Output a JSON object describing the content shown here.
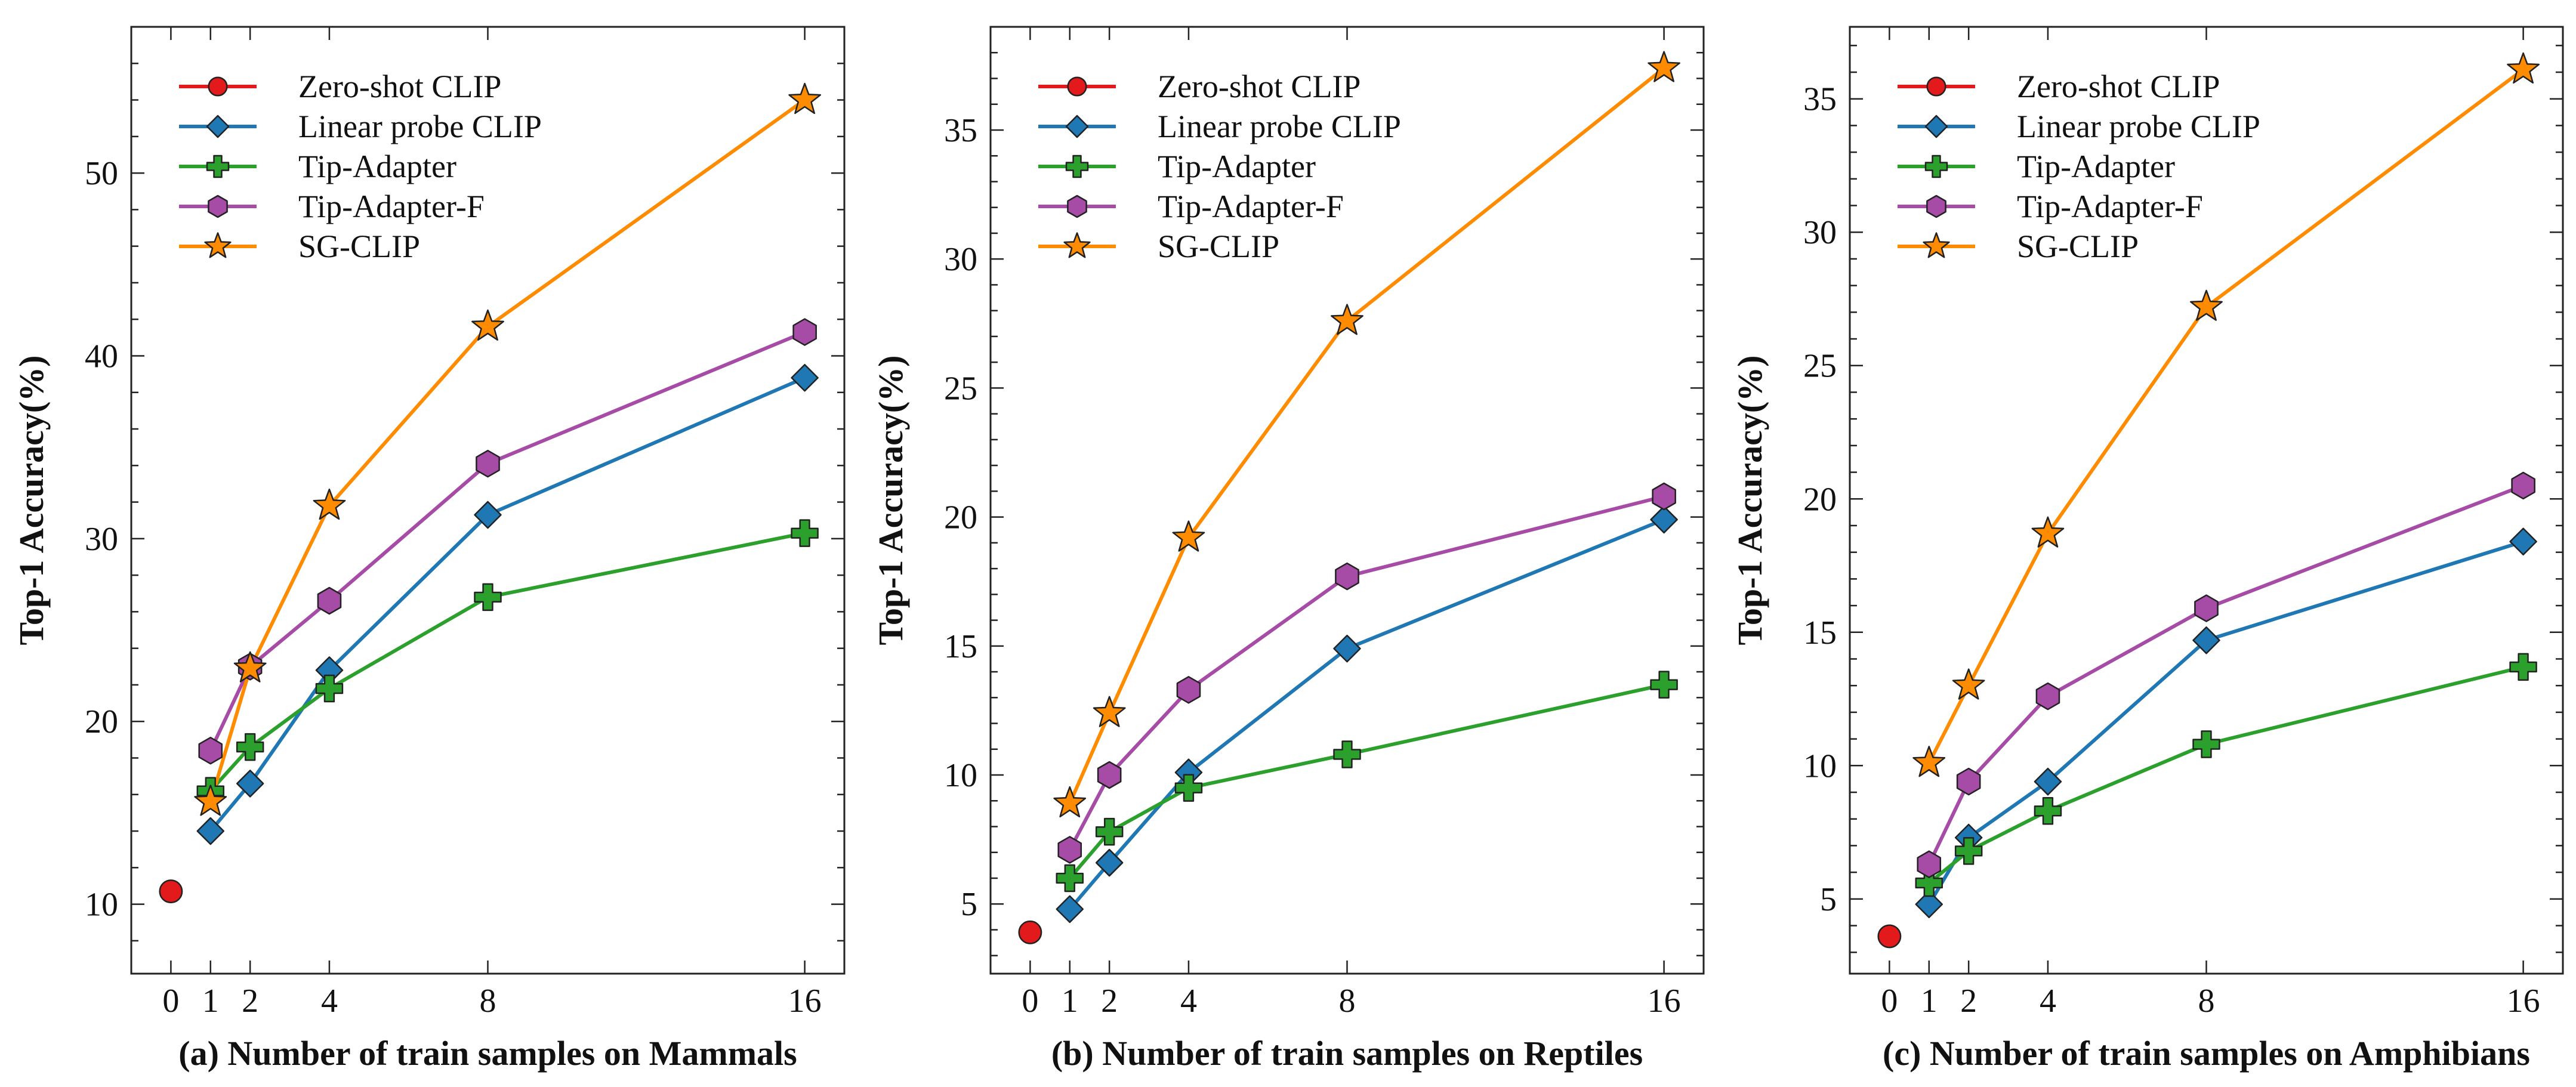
{
  "chart_data": [
    {
      "type": "line",
      "panel": "a",
      "xlabel": "(a) Number of train samples on Mammals",
      "ylabel": "Top-1 Accuracy(%)",
      "xticks": [
        "0",
        "1",
        "2",
        "4",
        "8",
        "16"
      ],
      "xlim": [
        -1,
        17
      ],
      "yticks": [
        10,
        20,
        30,
        40,
        50
      ],
      "ylim": [
        6.2,
        58
      ],
      "legend": "top-left",
      "series": [
        {
          "name": "Zero-shot CLIP",
          "color": "#e31a1c",
          "marker": "circle",
          "x": [
            0
          ],
          "y": [
            10.7
          ]
        },
        {
          "name": "Linear probe CLIP",
          "color": "#1f78b4",
          "marker": "diamond",
          "x": [
            1,
            2,
            4,
            8,
            16
          ],
          "y": [
            14.0,
            16.6,
            22.8,
            31.3,
            38.8
          ]
        },
        {
          "name": "Tip-Adapter",
          "color": "#2ca02c",
          "marker": "plus",
          "x": [
            1,
            2,
            4,
            8,
            16
          ],
          "y": [
            16.2,
            18.6,
            21.8,
            26.8,
            30.3
          ]
        },
        {
          "name": "Tip-Adapter-F",
          "color": "#a64ca6",
          "marker": "hexagon",
          "x": [
            1,
            2,
            4,
            8,
            16
          ],
          "y": [
            18.4,
            23.0,
            26.6,
            34.1,
            41.3
          ]
        },
        {
          "name": "SG-CLIP",
          "color": "#ff8c00",
          "marker": "star",
          "x": [
            1,
            2,
            4,
            8,
            16
          ],
          "y": [
            15.6,
            22.9,
            31.8,
            41.6,
            54.0
          ]
        }
      ]
    },
    {
      "type": "line",
      "panel": "b",
      "xlabel": "(b) Number of train samples on Reptiles",
      "ylabel": "Top-1 Accuracy(%)",
      "xticks": [
        "0",
        "1",
        "2",
        "4",
        "8",
        "16"
      ],
      "xlim": [
        -1,
        17
      ],
      "yticks": [
        5,
        10,
        15,
        20,
        25,
        30,
        35
      ],
      "ylim": [
        2.3,
        39.0
      ],
      "legend": "top-left",
      "series": [
        {
          "name": "Zero-shot CLIP",
          "color": "#e31a1c",
          "marker": "circle",
          "x": [
            0
          ],
          "y": [
            3.9
          ]
        },
        {
          "name": "Linear probe CLIP",
          "color": "#1f78b4",
          "marker": "diamond",
          "x": [
            1,
            2,
            4,
            8,
            16
          ],
          "y": [
            4.8,
            6.6,
            10.1,
            14.9,
            19.9
          ]
        },
        {
          "name": "Tip-Adapter",
          "color": "#2ca02c",
          "marker": "plus",
          "x": [
            1,
            2,
            4,
            8,
            16
          ],
          "y": [
            6.0,
            7.8,
            9.5,
            10.8,
            13.5
          ]
        },
        {
          "name": "Tip-Adapter-F",
          "color": "#a64ca6",
          "marker": "hexagon",
          "x": [
            1,
            2,
            4,
            8,
            16
          ],
          "y": [
            7.1,
            10.0,
            13.3,
            17.7,
            20.8
          ]
        },
        {
          "name": "SG-CLIP",
          "color": "#ff8c00",
          "marker": "star",
          "x": [
            1,
            2,
            4,
            8,
            16
          ],
          "y": [
            8.9,
            12.4,
            19.2,
            27.6,
            37.4
          ]
        }
      ]
    },
    {
      "type": "line",
      "panel": "c",
      "xlabel": "(c) Number of train samples on Amphibians",
      "ylabel": "Top-1 Accuracy(%)",
      "xticks": [
        "0",
        "1",
        "2",
        "4",
        "8",
        "16"
      ],
      "xlim": [
        -1,
        17
      ],
      "yticks": [
        5,
        10,
        15,
        20,
        25,
        30,
        35
      ],
      "ylim": [
        2.2,
        37.7
      ],
      "legend": "top-left",
      "series": [
        {
          "name": "Zero-shot CLIP",
          "color": "#e31a1c",
          "marker": "circle",
          "x": [
            0
          ],
          "y": [
            3.6
          ]
        },
        {
          "name": "Linear probe CLIP",
          "color": "#1f78b4",
          "marker": "diamond",
          "x": [
            1,
            2,
            4,
            8,
            16
          ],
          "y": [
            4.8,
            7.3,
            9.4,
            14.7,
            18.4
          ]
        },
        {
          "name": "Tip-Adapter",
          "color": "#2ca02c",
          "marker": "plus",
          "x": [
            1,
            2,
            4,
            8,
            16
          ],
          "y": [
            5.6,
            6.8,
            8.3,
            10.8,
            13.7
          ]
        },
        {
          "name": "Tip-Adapter-F",
          "color": "#a64ca6",
          "marker": "hexagon",
          "x": [
            1,
            2,
            4,
            8,
            16
          ],
          "y": [
            6.3,
            9.4,
            12.6,
            15.9,
            20.5
          ]
        },
        {
          "name": "SG-CLIP",
          "color": "#ff8c00",
          "marker": "star",
          "x": [
            1,
            2,
            4,
            8,
            16
          ],
          "y": [
            10.1,
            13.0,
            18.7,
            27.2,
            36.1
          ]
        }
      ]
    }
  ]
}
